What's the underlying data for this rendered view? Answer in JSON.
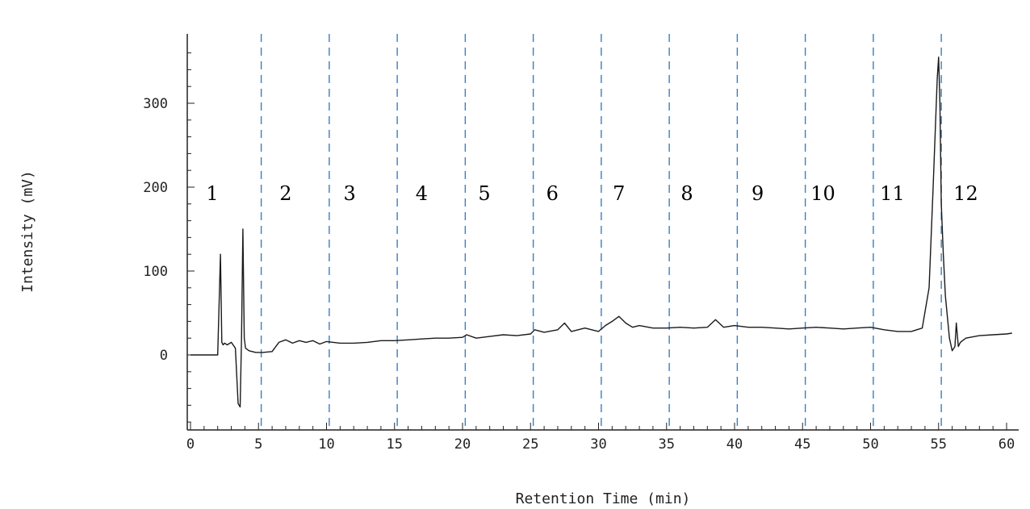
{
  "chart_data": {
    "type": "line",
    "title": "",
    "xlabel": "Retention Time (min)",
    "ylabel": "Intensity (mV)",
    "xlim": [
      0,
      60.5
    ],
    "ylim": [
      -90,
      380
    ],
    "x_ticks": [
      0,
      5,
      10,
      15,
      20,
      25,
      30,
      35,
      40,
      45,
      50,
      55,
      60
    ],
    "y_ticks": [
      0,
      100,
      200,
      300
    ],
    "grid": false,
    "line_color": "#1a1a1a",
    "divider_color": "#3a7cc4",
    "fraction_boundaries": [
      5.2,
      10.2,
      15.2,
      20.2,
      25.2,
      30.2,
      35.2,
      40.2,
      45.2,
      50.2,
      55.2
    ],
    "fractions": [
      {
        "label": "1",
        "x": 1.6
      },
      {
        "label": "2",
        "x": 7.0
      },
      {
        "label": "3",
        "x": 11.7
      },
      {
        "label": "4",
        "x": 17.0
      },
      {
        "label": "5",
        "x": 21.6
      },
      {
        "label": "6",
        "x": 26.6
      },
      {
        "label": "7",
        "x": 31.5
      },
      {
        "label": "8",
        "x": 36.5
      },
      {
        "label": "9",
        "x": 41.7
      },
      {
        "label": "10",
        "x": 46.5
      },
      {
        "label": "11",
        "x": 51.6
      },
      {
        "label": "12",
        "x": 57.0
      }
    ],
    "series": [
      {
        "x": [
          0,
          2.0,
          2.2,
          2.3,
          2.4,
          2.5,
          2.7,
          3.0,
          3.3,
          3.5,
          3.65,
          3.75,
          3.85,
          3.95,
          4.05,
          4.3,
          4.8,
          5.3,
          6.0,
          6.5,
          7.0,
          7.5,
          8.0,
          8.5,
          9.0,
          9.5,
          10.0,
          11.0,
          12.0,
          13.0,
          14.0,
          15.0,
          16.0,
          17.0,
          18.0,
          19.0,
          20.0,
          20.3,
          21.0,
          22.0,
          23.0,
          24.0,
          25.0,
          25.3,
          26.0,
          27.0,
          27.5,
          28.0,
          29.0,
          30.0,
          30.5,
          31.0,
          31.5,
          32.0,
          32.5,
          33.0,
          34.0,
          35.0,
          36.0,
          37.0,
          38.0,
          38.6,
          39.2,
          40.0,
          41.0,
          42.0,
          43.0,
          44.0,
          45.0,
          46.0,
          47.0,
          48.0,
          49.0,
          50.0,
          51.0,
          52.0,
          53.0,
          53.8,
          54.3,
          54.6,
          54.9,
          55.0,
          55.1,
          55.2,
          55.35,
          55.5,
          55.8,
          56.0,
          56.2,
          56.3,
          56.45,
          56.6,
          57.0,
          58.0,
          59.0,
          60.0,
          60.4
        ],
        "y": [
          0,
          0,
          120,
          15,
          12,
          14,
          12,
          15,
          8,
          -58,
          -62,
          20,
          150,
          20,
          8,
          5,
          3,
          3,
          4,
          15,
          18,
          14,
          17,
          15,
          17,
          13,
          16,
          14,
          14,
          15,
          17,
          17,
          18,
          19,
          20,
          20,
          21,
          24,
          20,
          22,
          24,
          23,
          25,
          30,
          27,
          30,
          38,
          28,
          32,
          28,
          35,
          40,
          46,
          38,
          33,
          35,
          32,
          32,
          33,
          32,
          33,
          42,
          33,
          35,
          33,
          33,
          32,
          31,
          32,
          33,
          32,
          31,
          32,
          33,
          30,
          28,
          28,
          32,
          80,
          200,
          330,
          355,
          300,
          180,
          120,
          70,
          20,
          5,
          10,
          38,
          10,
          15,
          20,
          23,
          24,
          25,
          26
        ]
      }
    ]
  }
}
